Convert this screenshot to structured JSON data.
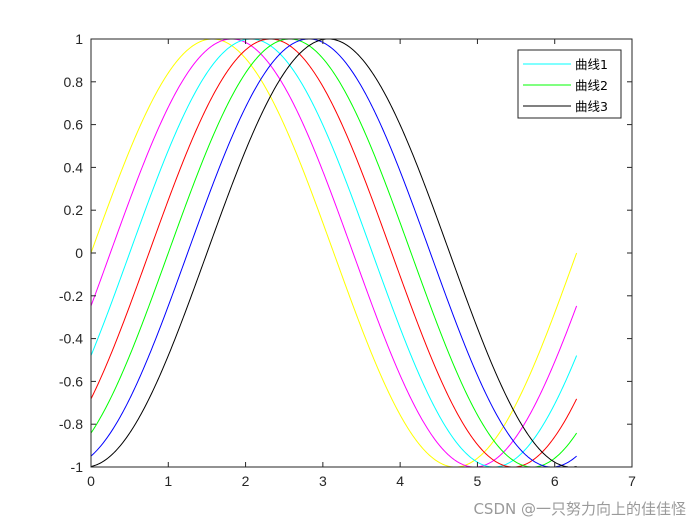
{
  "chart_data": {
    "type": "line",
    "x_function": "x from 0 to 2π",
    "xlim": [
      0,
      7
    ],
    "ylim": [
      -1,
      1
    ],
    "x_ticks": [
      0,
      1,
      2,
      3,
      4,
      5,
      6,
      7
    ],
    "y_ticks": [
      1,
      0.8,
      0.6,
      0.4,
      0.2,
      0,
      -0.2,
      -0.4,
      -0.6,
      -0.8,
      -1
    ],
    "x_tick_labels": [
      "0",
      "1",
      "2",
      "3",
      "4",
      "5",
      "6",
      "7"
    ],
    "y_tick_labels": [
      "1",
      "0.8",
      "0.6",
      "0.4",
      "0.2",
      "0",
      "-0.2",
      "-0.4",
      "-0.6",
      "-0.8",
      "-1"
    ],
    "x_range_end": 6.2832,
    "series": [
      {
        "color": "#ffff00",
        "function": "sin(x - 0)",
        "phase": 0.0
      },
      {
        "color": "#ff00ff",
        "function": "sin(x - 0.25)",
        "phase": 0.25
      },
      {
        "color": "#00ffff",
        "name": "曲线1",
        "function": "sin(x - 0.5)",
        "phase": 0.5
      },
      {
        "color": "#ff0000",
        "function": "sin(x - 0.75)",
        "phase": 0.75
      },
      {
        "color": "#00ff00",
        "name": "曲线2",
        "function": "sin(x - 1.0)",
        "phase": 1.0
      },
      {
        "color": "#0000ff",
        "function": "sin(x - 1.25)",
        "phase": 1.25
      },
      {
        "color": "#000000",
        "name": "曲线3",
        "function": "sin(x - 1.5)",
        "phase": 1.5
      }
    ],
    "legend": {
      "placement": "top-right",
      "entries": [
        {
          "label": "曲线1",
          "color": "#00ffff"
        },
        {
          "label": "曲线2",
          "color": "#00ff00"
        },
        {
          "label": "曲线3",
          "color": "#000000"
        }
      ]
    },
    "grid": false,
    "box": true
  },
  "watermark": "CSDN @一只努力向上的佳佳怪"
}
